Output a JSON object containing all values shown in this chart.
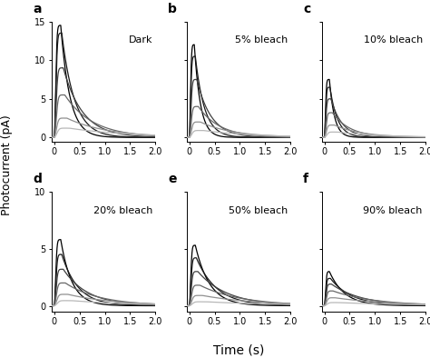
{
  "panels": [
    {
      "label": "a",
      "title": "Dark",
      "ylim": [
        -0.5,
        15
      ],
      "yticks": [
        0,
        5,
        10,
        15
      ]
    },
    {
      "label": "b",
      "title": "5% bleach",
      "ylim": [
        -0.5,
        15
      ],
      "yticks": [
        0,
        5,
        10,
        15
      ]
    },
    {
      "label": "c",
      "title": "10% bleach",
      "ylim": [
        -0.5,
        15
      ],
      "yticks": [
        0,
        5,
        10,
        15
      ]
    },
    {
      "label": "d",
      "title": "20% bleach",
      "ylim": [
        -0.5,
        10
      ],
      "yticks": [
        0,
        5,
        10
      ]
    },
    {
      "label": "e",
      "title": "50% bleach",
      "ylim": [
        -0.5,
        10
      ],
      "yticks": [
        0,
        5,
        10
      ]
    },
    {
      "label": "f",
      "title": "90% bleach",
      "ylim": [
        -0.5,
        10
      ],
      "yticks": [
        0,
        5,
        10
      ]
    }
  ],
  "xlim": [
    -0.05,
    2.0
  ],
  "xticks": [
    0.0,
    0.5,
    1.0,
    1.5,
    2.0
  ],
  "xlabel": "Time (s)",
  "ylabel": "Photocurrent (pA)",
  "n_curves": 6,
  "peak_times_a": [
    0.13,
    0.15,
    0.18,
    0.21,
    0.25,
    0.3
  ],
  "peak_amps_a": [
    14.5,
    13.5,
    9.0,
    5.5,
    2.5,
    1.2
  ],
  "decay_taus_a": [
    0.18,
    0.25,
    0.38,
    0.55,
    0.8,
    1.2
  ],
  "rise_taus_a": [
    0.04,
    0.045,
    0.05,
    0.055,
    0.06,
    0.07
  ],
  "peak_times_b": [
    0.1,
    0.12,
    0.15,
    0.18,
    0.22,
    0.28
  ],
  "peak_amps_b": [
    12.0,
    10.5,
    7.5,
    4.0,
    2.0,
    0.9
  ],
  "decay_taus_b": [
    0.12,
    0.18,
    0.28,
    0.42,
    0.65,
    1.0
  ],
  "rise_taus_b": [
    0.032,
    0.036,
    0.042,
    0.048,
    0.055,
    0.065
  ],
  "peak_times_c": [
    0.1,
    0.11,
    0.13,
    0.16,
    0.2,
    0.26
  ],
  "peak_amps_c": [
    7.5,
    6.5,
    5.0,
    3.2,
    1.6,
    0.7
  ],
  "decay_taus_c": [
    0.1,
    0.15,
    0.22,
    0.35,
    0.55,
    0.85
  ],
  "rise_taus_c": [
    0.03,
    0.033,
    0.038,
    0.044,
    0.05,
    0.06
  ],
  "peak_times_d": [
    0.13,
    0.15,
    0.18,
    0.22,
    0.27,
    0.34
  ],
  "peak_amps_d": [
    5.8,
    4.5,
    3.2,
    2.0,
    1.0,
    0.45
  ],
  "decay_taus_d": [
    0.22,
    0.32,
    0.48,
    0.68,
    0.95,
    1.3
  ],
  "rise_taus_d": [
    0.04,
    0.045,
    0.05,
    0.056,
    0.064,
    0.075
  ],
  "peak_times_e": [
    0.12,
    0.14,
    0.17,
    0.21,
    0.26,
    0.33
  ],
  "peak_amps_e": [
    5.3,
    4.2,
    3.0,
    1.8,
    0.9,
    0.35
  ],
  "decay_taus_e": [
    0.28,
    0.4,
    0.58,
    0.8,
    1.1,
    1.5
  ],
  "rise_taus_e": [
    0.038,
    0.043,
    0.048,
    0.055,
    0.063,
    0.074
  ],
  "peak_times_f": [
    0.1,
    0.12,
    0.14,
    0.17,
    0.21,
    0.27
  ],
  "peak_amps_f": [
    3.0,
    2.4,
    1.9,
    1.3,
    0.7,
    0.28
  ],
  "decay_taus_f": [
    0.3,
    0.42,
    0.6,
    0.82,
    1.1,
    1.5
  ],
  "rise_taus_f": [
    0.033,
    0.037,
    0.042,
    0.048,
    0.056,
    0.067
  ],
  "colors": [
    "#000000",
    "#1a1a1a",
    "#404040",
    "#686868",
    "#909090",
    "#b8b8b8"
  ],
  "linewidth": 0.9,
  "bg_color": "#ffffff",
  "label_fontsize": 8,
  "tick_fontsize": 7,
  "axis_label_fontsize": 9,
  "panel_label_fontsize": 10
}
